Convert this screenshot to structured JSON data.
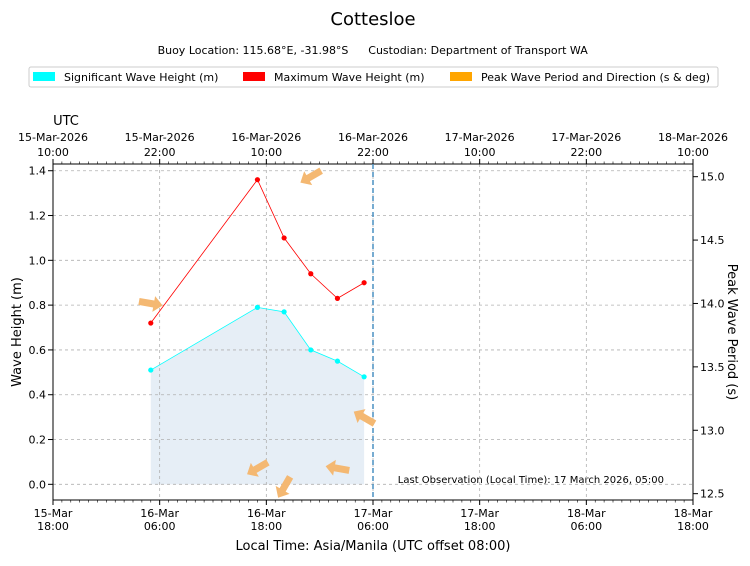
{
  "chart_data": {
    "type": "line",
    "title": "Cottesloe",
    "subtitle": {
      "location": "Buoy Location: 115.68°E, -31.98°S",
      "custodian": "Custodian: Department of Transport WA"
    },
    "legend": {
      "placement": "top",
      "entries": [
        {
          "label": "Significant Wave Height (m)",
          "color": "#00ffff"
        },
        {
          "label": "Maximum Wave Height (m)",
          "color": "#ff0000"
        },
        {
          "label": "Peak Wave Period and Direction (s & deg)",
          "color": "#ffa500"
        }
      ]
    },
    "xlabel": "Local Time: Asia/Manila (UTC offset 08:00)",
    "ylabel": "Wave Height (m)",
    "y2label": "Peak Wave Period (s)",
    "top_axis_label": "UTC",
    "x_unit": "hours since 15-Mar 18:00 local",
    "xlim": [
      0,
      72
    ],
    "ylim": [
      -0.07,
      1.43
    ],
    "y2lim": [
      12.45,
      15.1
    ],
    "grid": true,
    "x_ticks_hours": [
      0,
      12,
      24,
      36,
      48,
      60,
      72
    ],
    "bottom_tick_labels": [
      [
        "15-Mar",
        "18:00"
      ],
      [
        "16-Mar",
        "06:00"
      ],
      [
        "16-Mar",
        "18:00"
      ],
      [
        "17-Mar",
        "06:00"
      ],
      [
        "17-Mar",
        "18:00"
      ],
      [
        "18-Mar",
        "06:00"
      ],
      [
        "18-Mar",
        "18:00"
      ]
    ],
    "top_tick_labels": [
      [
        "15-Mar-2026",
        "10:00"
      ],
      [
        "15-Mar-2026",
        "22:00"
      ],
      [
        "16-Mar-2026",
        "10:00"
      ],
      [
        "16-Mar-2026",
        "22:00"
      ],
      [
        "17-Mar-2026",
        "10:00"
      ],
      [
        "17-Mar-2026",
        "22:00"
      ],
      [
        "18-Mar-2026",
        "10:00"
      ]
    ],
    "y_ticks": [
      0.0,
      0.2,
      0.4,
      0.6,
      0.8,
      1.0,
      1.2,
      1.4
    ],
    "y_tick_labels": [
      "0.0",
      "0.2",
      "0.4",
      "0.6",
      "0.8",
      "1.0",
      "1.2",
      "1.4"
    ],
    "y2_ticks": [
      12.5,
      13.0,
      13.5,
      14.0,
      14.5,
      15.0
    ],
    "y2_tick_labels": [
      "12.5",
      "13.0",
      "13.5",
      "14.0",
      "14.5",
      "15.0"
    ],
    "series": [
      {
        "name": "Significant Wave Height (m)",
        "color": "#00ffff",
        "fill": "#e6eef6",
        "x": [
          11,
          23,
          26,
          29,
          32,
          35
        ],
        "values": [
          0.51,
          0.79,
          0.77,
          0.6,
          0.55,
          0.48
        ]
      },
      {
        "name": "Maximum Wave Height (m)",
        "color": "#ff0000",
        "x": [
          11,
          23,
          26,
          29,
          32,
          35
        ],
        "values": [
          0.72,
          1.36,
          1.1,
          0.94,
          0.83,
          0.9
        ]
      }
    ],
    "peak_period_arrows": {
      "color": "#f4b872",
      "points": [
        {
          "x": 11,
          "period": 14.0,
          "direction_deg": 100
        },
        {
          "x": 23,
          "period": 12.7,
          "direction_deg": 240
        },
        {
          "x": 26,
          "period": 12.55,
          "direction_deg": 210
        },
        {
          "x": 29,
          "period": 15.0,
          "direction_deg": 240
        },
        {
          "x": 32,
          "period": 12.7,
          "direction_deg": 280
        },
        {
          "x": 35,
          "period": 13.1,
          "direction_deg": 300
        }
      ]
    },
    "last_observation_x": 36,
    "annotation": "Last Observation (Local Time): 17 March 2026, 05:00"
  }
}
